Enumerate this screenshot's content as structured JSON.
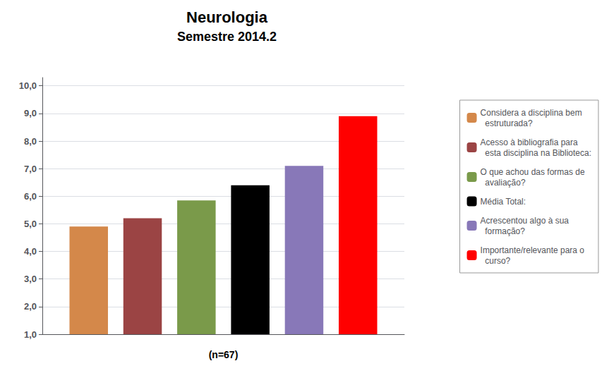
{
  "chart_data": {
    "type": "bar",
    "title": "Neurologia",
    "subtitle": "Semestre 2014.2",
    "xlabel": "(n=67)",
    "categories": [
      null
    ],
    "series": [
      {
        "name": "Considera a disciplina bem\n  estruturada?",
        "color": "#D4884A",
        "values": [
          4.9
        ]
      },
      {
        "name": "Acesso à bibliografia para\n  esta disciplina na Biblioteca:",
        "color": "#9B4444",
        "values": [
          5.2
        ]
      },
      {
        "name": "O que achou das formas de\n  avaliação?",
        "color": "#7A9A4A",
        "values": [
          5.85
        ]
      },
      {
        "name": "Média Total:",
        "color": "#000000",
        "values": [
          6.4
        ]
      },
      {
        "name": "Acrescentou algo à sua\n  formação?",
        "color": "#8878B8",
        "values": [
          7.1
        ]
      },
      {
        "name": "Importante/relevante para o\n  curso?",
        "color": "#FF0000",
        "values": [
          8.9
        ]
      }
    ],
    "ylim": [
      1.0,
      10.3
    ],
    "yticks": [
      {
        "value": 1.0,
        "label": "1,0"
      },
      {
        "value": 2.0,
        "label": "2,0"
      },
      {
        "value": 3.0,
        "label": "3,0"
      },
      {
        "value": 4.0,
        "label": "4,0"
      },
      {
        "value": 5.0,
        "label": "5,0"
      },
      {
        "value": 6.0,
        "label": "6,0"
      },
      {
        "value": 7.0,
        "label": "7,0"
      },
      {
        "value": 8.0,
        "label": "8,0"
      },
      {
        "value": 9.0,
        "label": "9,0"
      },
      {
        "value": 10.0,
        "label": "10,0"
      }
    ],
    "grid": true,
    "legend": "right",
    "tick_labels": "y"
  }
}
